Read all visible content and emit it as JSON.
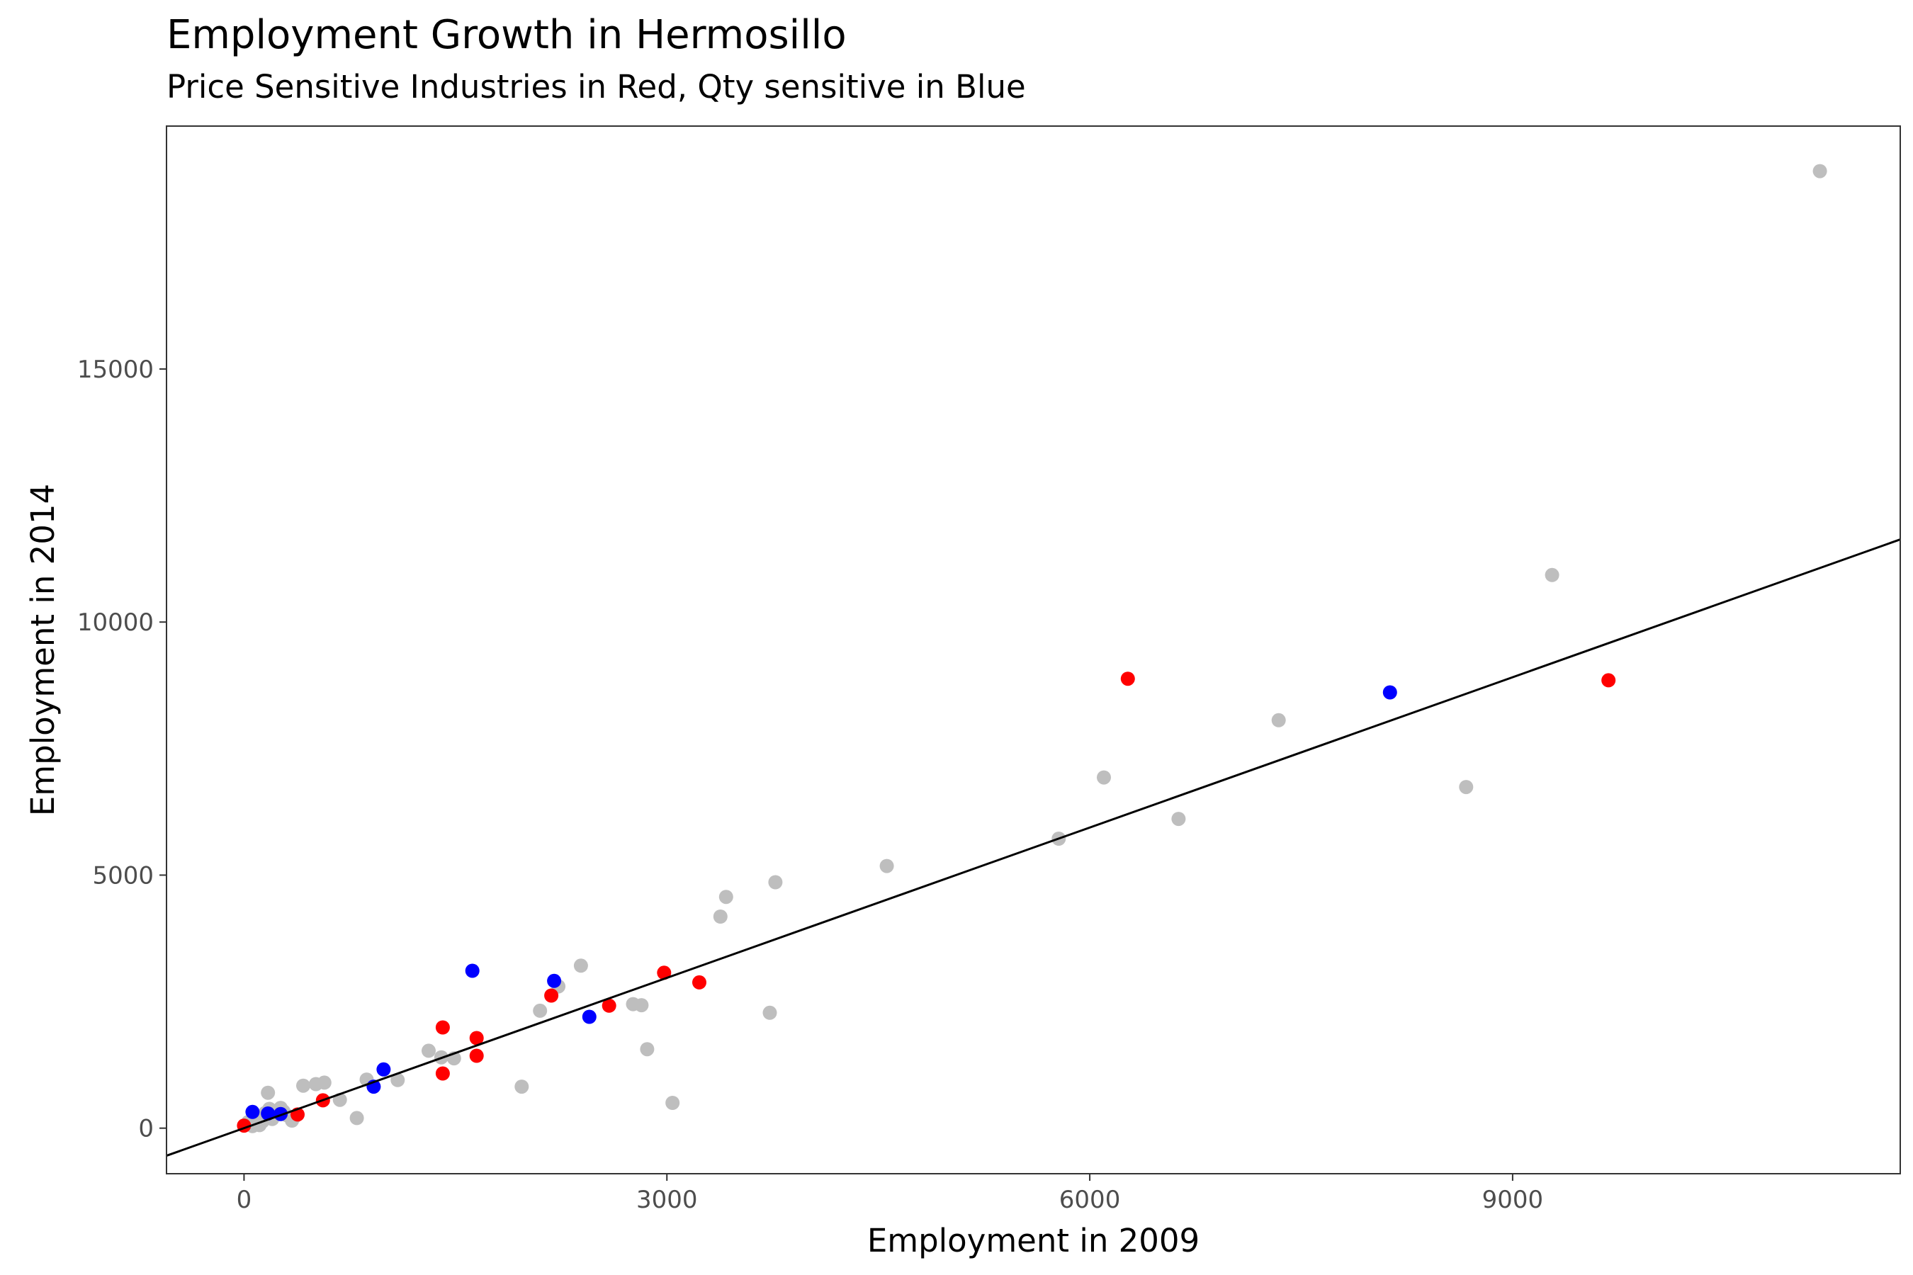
{
  "chart_data": {
    "type": "scatter",
    "title": "Employment Growth in Hermosillo",
    "subtitle": "Price Sensitive Industries in Red, Qty sensitive in Blue",
    "xlabel": "Employment in 2009",
    "ylabel": "Employment in 2014",
    "xlim": [
      -550,
      11750
    ],
    "ylim": [
      -900,
      19800
    ],
    "x_ticks": [
      0,
      3000,
      6000,
      9000
    ],
    "y_ticks": [
      0,
      5000,
      10000,
      15000
    ],
    "grid": false,
    "colors": {
      "other": "#bebebe",
      "price_sensitive": "#ff0000",
      "qty_sensitive": "#0000ff",
      "fit_line": "#000000"
    },
    "fit_line": {
      "slope": 0.99,
      "intercept": 0
    },
    "series": [
      {
        "color_key": "other",
        "points": [
          [
            30,
            120
          ],
          [
            60,
            40
          ],
          [
            90,
            200
          ],
          [
            110,
            60
          ],
          [
            130,
            130
          ],
          [
            150,
            300
          ],
          [
            170,
            700
          ],
          [
            180,
            380
          ],
          [
            200,
            180
          ],
          [
            220,
            280
          ],
          [
            240,
            350
          ],
          [
            260,
            400
          ],
          [
            280,
            330
          ],
          [
            300,
            260
          ],
          [
            340,
            150
          ],
          [
            360,
            230
          ],
          [
            420,
            840
          ],
          [
            510,
            870
          ],
          [
            570,
            900
          ],
          [
            680,
            560
          ],
          [
            800,
            200
          ],
          [
            870,
            960
          ],
          [
            1090,
            950
          ],
          [
            1310,
            1530
          ],
          [
            1400,
            1400
          ],
          [
            1490,
            1380
          ],
          [
            1970,
            820
          ],
          [
            2100,
            2320
          ],
          [
            2230,
            2800
          ],
          [
            2390,
            3210
          ],
          [
            2760,
            2450
          ],
          [
            2820,
            2430
          ],
          [
            2860,
            1560
          ],
          [
            3040,
            500
          ],
          [
            3380,
            4180
          ],
          [
            3420,
            4570
          ],
          [
            3730,
            2280
          ],
          [
            3770,
            4860
          ],
          [
            4560,
            5180
          ],
          [
            5780,
            5720
          ],
          [
            6100,
            6930
          ],
          [
            6630,
            6110
          ],
          [
            7340,
            8060
          ],
          [
            8670,
            6740
          ],
          [
            9280,
            10930
          ],
          [
            11180,
            18910
          ]
        ]
      },
      {
        "color_key": "price_sensitive",
        "points": [
          [
            0,
            50
          ],
          [
            380,
            270
          ],
          [
            560,
            550
          ],
          [
            1410,
            1080
          ],
          [
            1410,
            1990
          ],
          [
            1650,
            1430
          ],
          [
            1650,
            1780
          ],
          [
            2180,
            2620
          ],
          [
            2590,
            2420
          ],
          [
            2980,
            3070
          ],
          [
            3230,
            2880
          ],
          [
            6270,
            8880
          ],
          [
            9680,
            8850
          ]
        ]
      },
      {
        "color_key": "qty_sensitive",
        "points": [
          [
            60,
            320
          ],
          [
            170,
            290
          ],
          [
            260,
            280
          ],
          [
            920,
            820
          ],
          [
            990,
            1160
          ],
          [
            1620,
            3110
          ],
          [
            2200,
            2910
          ],
          [
            2450,
            2200
          ],
          [
            8130,
            8610
          ]
        ]
      }
    ]
  }
}
